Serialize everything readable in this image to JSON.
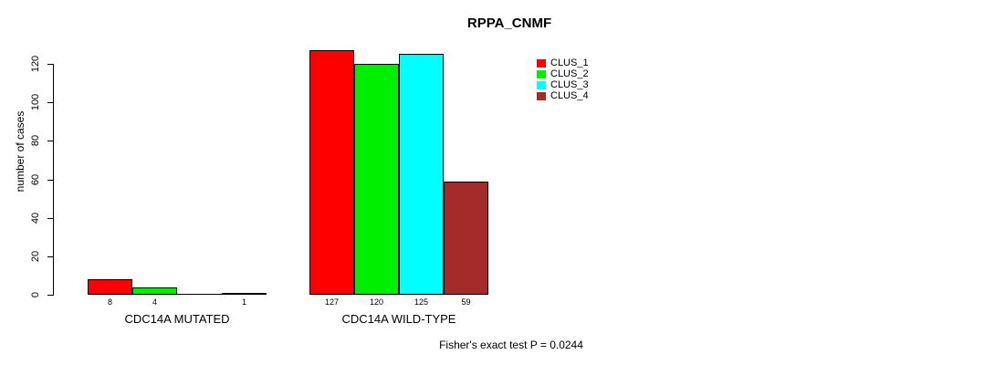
{
  "chart_data": {
    "type": "bar",
    "title": "RPPA_CNMF",
    "ylabel": "number of cases",
    "xlabel": "",
    "ylim": [
      0,
      120
    ],
    "yticks": [
      0,
      20,
      40,
      60,
      80,
      100,
      120
    ],
    "grid": false,
    "categories": [
      "CDC14A MUTATED",
      "CDC14A WILD-TYPE"
    ],
    "series": [
      {
        "name": "CLUS_1",
        "color": "#ff0000",
        "values": [
          8,
          127
        ]
      },
      {
        "name": "CLUS_2",
        "color": "#00ee00",
        "values": [
          4,
          120
        ]
      },
      {
        "name": "CLUS_3",
        "color": "#00ffff",
        "values": [
          0,
          125
        ]
      },
      {
        "name": "CLUS_4",
        "color": "#a52a2a",
        "values": [
          1,
          59
        ]
      }
    ],
    "bar_value_labels": [
      [
        "8",
        "4",
        "",
        "1"
      ],
      [
        "127",
        "120",
        "125",
        "59"
      ]
    ],
    "legend": {
      "position": "top-right",
      "boxed": false,
      "entries": [
        "CLUS_1",
        "CLUS_2",
        "CLUS_3",
        "CLUS_4"
      ]
    },
    "annotation": "Fisher's exact test P = 0.0244"
  }
}
